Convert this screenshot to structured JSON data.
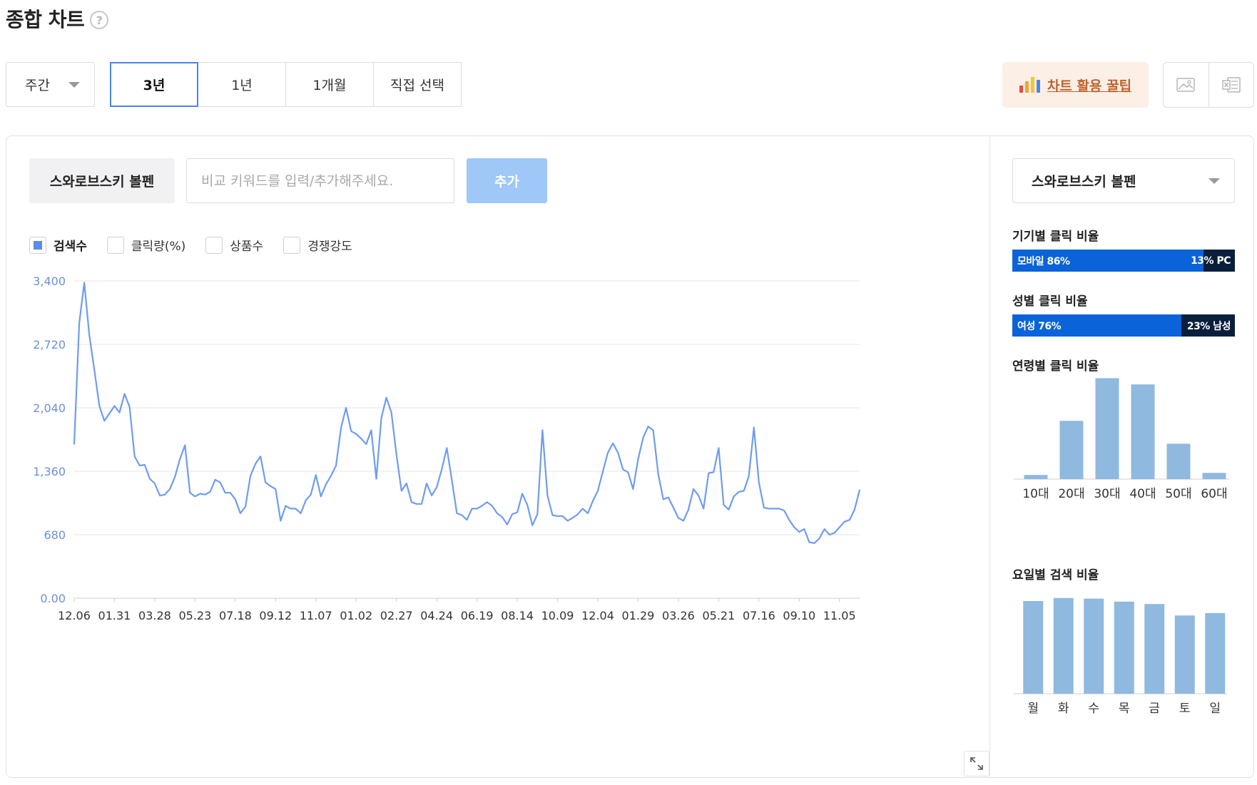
{
  "header": {
    "title": "종합 차트",
    "help_icon": "question-circle-icon"
  },
  "controls": {
    "period_select": "주간",
    "range_tabs": [
      {
        "label": "3년",
        "active": true
      },
      {
        "label": "1년",
        "active": false
      },
      {
        "label": "1개월",
        "active": false
      },
      {
        "label": "직접 선택",
        "active": false
      }
    ],
    "tip_button": "차트 활용 꿀팁",
    "export_icons": [
      "image-icon",
      "excel-icon"
    ]
  },
  "keyword": {
    "current": "스와로브스키 볼펜",
    "input_placeholder": "비교 키워드를 입력/추가해주세요.",
    "add_button": "추가"
  },
  "legend": [
    {
      "label": "검색수",
      "checked": true
    },
    {
      "label": "클릭량(%)",
      "checked": false
    },
    {
      "label": "상품수",
      "checked": false
    },
    {
      "label": "경쟁강도",
      "checked": false
    }
  ],
  "side": {
    "select_value": "스와로브스키 볼펜",
    "device_title": "기기별 클릭 비율",
    "device_left": "모바일 86%",
    "device_right": "13% PC",
    "device_share": 0.86,
    "gender_title": "성별 클릭 비율",
    "gender_left": "여성 76%",
    "gender_right": "23% 남성",
    "gender_share": 0.76,
    "age_title": "연령별 클릭 비율",
    "weekday_title": "요일별 검색 비율"
  },
  "colors": {
    "line": "#6e9cf0",
    "grid": "#e4e4e4",
    "axis_label": "#6f8fd8",
    "bar": "#8fb9df",
    "accent": "#4a86e8"
  },
  "chart_data": [
    {
      "type": "line",
      "title": "",
      "series": [
        {
          "name": "검색수",
          "values": [
            1650,
            2950,
            3380,
            2820,
            2450,
            2060,
            1900,
            1980,
            2060,
            1990,
            2190,
            2050,
            1520,
            1420,
            1430,
            1280,
            1230,
            1100,
            1110,
            1170,
            1300,
            1490,
            1640,
            1130,
            1090,
            1120,
            1110,
            1140,
            1270,
            1240,
            1130,
            1130,
            1060,
            910,
            980,
            1310,
            1440,
            1520,
            1240,
            1200,
            1170,
            830,
            990,
            960,
            960,
            910,
            1050,
            1110,
            1320,
            1090,
            1220,
            1310,
            1420,
            1830,
            2040,
            1790,
            1760,
            1710,
            1650,
            1800,
            1280,
            1930,
            2150,
            1990,
            1540,
            1150,
            1230,
            1030,
            1010,
            1010,
            1230,
            1100,
            1190,
            1380,
            1610,
            1270,
            910,
            890,
            840,
            960,
            960,
            990,
            1030,
            990,
            910,
            870,
            790,
            900,
            920,
            1120,
            1000,
            780,
            900,
            1800,
            1100,
            890,
            880,
            880,
            830,
            860,
            900,
            960,
            910,
            1040,
            1150,
            1360,
            1560,
            1660,
            1560,
            1380,
            1350,
            1170,
            1490,
            1720,
            1840,
            1800,
            1330,
            1060,
            1080,
            970,
            860,
            830,
            950,
            1170,
            1100,
            960,
            1340,
            1350,
            1610,
            1000,
            950,
            1090,
            1140,
            1150,
            1310,
            1830,
            1240,
            970,
            960,
            960,
            960,
            940,
            840,
            760,
            710,
            740,
            600,
            590,
            640,
            740,
            680,
            700,
            760,
            820,
            840,
            950,
            1160
          ]
        }
      ],
      "x_tick_labels": [
        "12.06",
        "01.31",
        "03.28",
        "05.23",
        "07.18",
        "09.12",
        "11.07",
        "01.02",
        "02.27",
        "04.24",
        "06.19",
        "08.14",
        "10.09",
        "12.04",
        "01.29",
        "03.26",
        "05.21",
        "07.16",
        "09.10",
        "11.05"
      ],
      "y_tick_labels": [
        "0.00",
        "680",
        "1,360",
        "2,040",
        "2,720",
        "3,400"
      ],
      "ylim": [
        0,
        3400
      ],
      "grid": true,
      "legend_placement": "top-left"
    },
    {
      "type": "bar",
      "title": "연령별 클릭 비율",
      "categories": [
        "10대",
        "20대",
        "30대",
        "40대",
        "50대",
        "60대"
      ],
      "values": [
        4,
        56,
        97,
        91,
        34,
        6
      ],
      "ylim": [
        0,
        100
      ]
    },
    {
      "type": "bar",
      "title": "요일별 검색 비율",
      "categories": [
        "월",
        "화",
        "수",
        "목",
        "금",
        "토",
        "일"
      ],
      "values": [
        15.4,
        15.9,
        15.8,
        15.3,
        14.9,
        13.0,
        13.4
      ],
      "ylim": [
        0,
        18
      ]
    }
  ]
}
